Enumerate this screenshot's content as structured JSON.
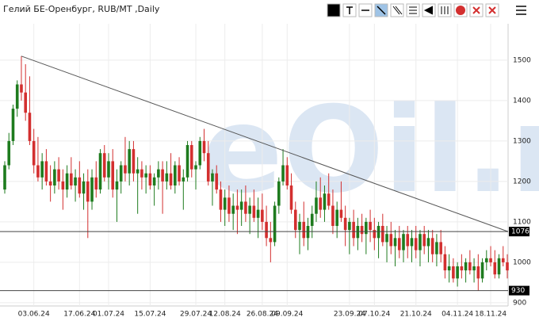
{
  "chart_data": {
    "type": "candlestick",
    "title": "Гелий БЕ-Оренбург, RUB/MT ,Daily",
    "watermark": "eOil.ru",
    "up_color": "#1e7b1e",
    "down_color": "#d32f2f",
    "grid": true,
    "ylim": [
      890,
      1590
    ],
    "yticks": [
      900,
      1000,
      1100,
      1200,
      1300,
      1400,
      1500
    ],
    "levels": [
      1076,
      930
    ],
    "trend_line": {
      "from": 1510,
      "to": 1076
    },
    "categories": [
      null,
      null,
      null,
      null,
      null,
      null,
      null,
      "03.06.24",
      null,
      null,
      null,
      null,
      null,
      null,
      null,
      null,
      null,
      null,
      "17.06.24",
      null,
      null,
      null,
      null,
      null,
      null,
      "01.07.24",
      null,
      null,
      null,
      null,
      null,
      null,
      null,
      null,
      null,
      "15.07.24",
      null,
      null,
      null,
      null,
      null,
      null,
      null,
      null,
      null,
      null,
      "29.07.24",
      null,
      null,
      null,
      null,
      null,
      null,
      "12.08.24",
      null,
      null,
      null,
      null,
      null,
      null,
      null,
      null,
      "26.08.24",
      null,
      null,
      null,
      null,
      null,
      "09.09.24",
      null,
      null,
      null,
      null,
      null,
      null,
      null,
      null,
      null,
      null,
      null,
      null,
      null,
      null,
      "23.09.24",
      null,
      null,
      null,
      null,
      null,
      "07.10.24",
      null,
      null,
      null,
      null,
      null,
      null,
      null,
      null,
      null,
      "21.10.24",
      null,
      null,
      null,
      null,
      null,
      null,
      null,
      null,
      null,
      "04.11.24",
      null,
      null,
      null,
      null,
      null,
      null,
      null,
      "18.11.24",
      null,
      null,
      null,
      null
    ],
    "ohlc": [
      [
        1180,
        1250,
        1170,
        1240
      ],
      [
        1240,
        1320,
        1230,
        1300
      ],
      [
        1300,
        1390,
        1290,
        1380
      ],
      [
        1380,
        1450,
        1360,
        1440
      ],
      [
        1440,
        1510,
        1400,
        1420
      ],
      [
        1420,
        1490,
        1350,
        1370
      ],
      [
        1370,
        1460,
        1290,
        1300
      ],
      [
        1300,
        1330,
        1220,
        1240
      ],
      [
        1240,
        1310,
        1200,
        1210
      ],
      [
        1210,
        1270,
        1180,
        1250
      ],
      [
        1250,
        1280,
        1190,
        1200
      ],
      [
        1200,
        1240,
        1150,
        1190
      ],
      [
        1190,
        1250,
        1170,
        1230
      ],
      [
        1230,
        1260,
        1180,
        1200
      ],
      [
        1200,
        1230,
        1130,
        1180
      ],
      [
        1180,
        1240,
        1160,
        1220
      ],
      [
        1220,
        1260,
        1180,
        1190
      ],
      [
        1190,
        1230,
        1150,
        1210
      ],
      [
        1210,
        1250,
        1160,
        1170
      ],
      [
        1170,
        1220,
        1130,
        1200
      ],
      [
        1200,
        1230,
        1060,
        1150
      ],
      [
        1150,
        1230,
        1130,
        1210
      ],
      [
        1210,
        1250,
        1160,
        1180
      ],
      [
        1180,
        1280,
        1170,
        1270
      ],
      [
        1270,
        1290,
        1200,
        1210
      ],
      [
        1210,
        1270,
        1180,
        1250
      ],
      [
        1250,
        1280,
        1160,
        1180
      ],
      [
        1180,
        1230,
        1100,
        1200
      ],
      [
        1200,
        1250,
        1170,
        1240
      ],
      [
        1240,
        1310,
        1200,
        1220
      ],
      [
        1220,
        1300,
        1190,
        1280
      ],
      [
        1280,
        1300,
        1200,
        1220
      ],
      [
        1220,
        1260,
        1120,
        1230
      ],
      [
        1230,
        1250,
        1180,
        1210
      ],
      [
        1210,
        1240,
        1170,
        1220
      ],
      [
        1220,
        1240,
        1180,
        1190
      ],
      [
        1190,
        1220,
        1140,
        1210
      ],
      [
        1210,
        1250,
        1180,
        1230
      ],
      [
        1230,
        1250,
        1120,
        1200
      ],
      [
        1200,
        1250,
        1180,
        1220
      ],
      [
        1220,
        1270,
        1180,
        1190
      ],
      [
        1190,
        1250,
        1170,
        1240
      ],
      [
        1240,
        1260,
        1190,
        1200
      ],
      [
        1200,
        1230,
        1130,
        1210
      ],
      [
        1210,
        1300,
        1200,
        1290
      ],
      [
        1290,
        1300,
        1210,
        1230
      ],
      [
        1230,
        1250,
        1180,
        1240
      ],
      [
        1240,
        1310,
        1230,
        1300
      ],
      [
        1300,
        1330,
        1250,
        1270
      ],
      [
        1270,
        1300,
        1190,
        1200
      ],
      [
        1200,
        1230,
        1140,
        1220
      ],
      [
        1220,
        1240,
        1170,
        1180
      ],
      [
        1180,
        1200,
        1100,
        1130
      ],
      [
        1130,
        1180,
        1090,
        1160
      ],
      [
        1160,
        1190,
        1100,
        1120
      ],
      [
        1120,
        1170,
        1080,
        1140
      ],
      [
        1140,
        1180,
        1070,
        1130
      ],
      [
        1130,
        1180,
        1090,
        1150
      ],
      [
        1150,
        1190,
        1100,
        1120
      ],
      [
        1120,
        1160,
        1070,
        1140
      ],
      [
        1140,
        1180,
        1100,
        1110
      ],
      [
        1110,
        1160,
        1060,
        1130
      ],
      [
        1130,
        1170,
        1080,
        1100
      ],
      [
        1100,
        1140,
        1040,
        1060
      ],
      [
        1060,
        1100,
        1000,
        1050
      ],
      [
        1050,
        1150,
        1040,
        1140
      ],
      [
        1140,
        1210,
        1120,
        1200
      ],
      [
        1200,
        1280,
        1190,
        1240
      ],
      [
        1240,
        1260,
        1180,
        1190
      ],
      [
        1190,
        1220,
        1120,
        1130
      ],
      [
        1130,
        1150,
        1060,
        1080
      ],
      [
        1080,
        1120,
        1020,
        1100
      ],
      [
        1100,
        1150,
        1040,
        1060
      ],
      [
        1060,
        1110,
        1030,
        1090
      ],
      [
        1090,
        1140,
        1060,
        1120
      ],
      [
        1120,
        1200,
        1100,
        1160
      ],
      [
        1160,
        1210,
        1110,
        1130
      ],
      [
        1130,
        1190,
        1100,
        1170
      ],
      [
        1170,
        1220,
        1130,
        1140
      ],
      [
        1140,
        1180,
        1070,
        1090
      ],
      [
        1090,
        1150,
        1060,
        1130
      ],
      [
        1130,
        1200,
        1100,
        1110
      ],
      [
        1110,
        1140,
        1040,
        1080
      ],
      [
        1080,
        1110,
        1020,
        1100
      ],
      [
        1100,
        1130,
        1040,
        1060
      ],
      [
        1060,
        1110,
        1030,
        1090
      ],
      [
        1090,
        1120,
        1050,
        1070
      ],
      [
        1070,
        1110,
        1020,
        1100
      ],
      [
        1100,
        1130,
        1050,
        1080
      ],
      [
        1080,
        1110,
        1030,
        1060
      ],
      [
        1060,
        1100,
        1010,
        1090
      ],
      [
        1090,
        1120,
        1040,
        1050
      ],
      [
        1050,
        1090,
        1000,
        1070
      ],
      [
        1070,
        1100,
        1020,
        1040
      ],
      [
        1040,
        1080,
        990,
        1060
      ],
      [
        1060,
        1090,
        1010,
        1030
      ],
      [
        1030,
        1080,
        1000,
        1070
      ],
      [
        1070,
        1090,
        1010,
        1040
      ],
      [
        1040,
        1080,
        1000,
        1060
      ],
      [
        1060,
        1090,
        1010,
        1030
      ],
      [
        1030,
        1080,
        990,
        1070
      ],
      [
        1070,
        1090,
        1020,
        1040
      ],
      [
        1040,
        1080,
        1000,
        1060
      ],
      [
        1060,
        1080,
        1000,
        1020
      ],
      [
        1020,
        1070,
        990,
        1050
      ],
      [
        1050,
        1080,
        1000,
        1020
      ],
      [
        1020,
        1040,
        960,
        980
      ],
      [
        980,
        1020,
        950,
        990
      ],
      [
        990,
        1010,
        950,
        960
      ],
      [
        960,
        1000,
        940,
        990
      ],
      [
        990,
        1020,
        960,
        980
      ],
      [
        980,
        1010,
        950,
        1000
      ],
      [
        1000,
        1030,
        970,
        980
      ],
      [
        980,
        1010,
        950,
        990
      ],
      [
        990,
        1020,
        930,
        960
      ],
      [
        960,
        1010,
        950,
        1000
      ],
      [
        1000,
        1030,
        980,
        1010
      ],
      [
        1010,
        1040,
        990,
        1000
      ],
      [
        1000,
        1030,
        960,
        970
      ],
      [
        970,
        1020,
        960,
        1010
      ],
      [
        1010,
        1040,
        990,
        1000
      ],
      [
        1000,
        1020,
        960,
        980
      ]
    ]
  }
}
